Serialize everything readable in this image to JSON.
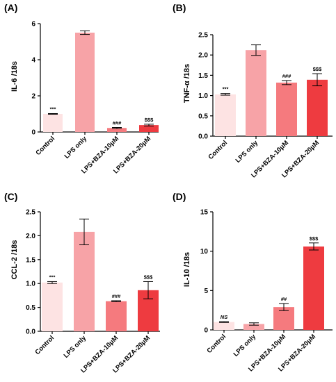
{
  "chart_data": [
    {
      "type": "bar",
      "panel_label": "(A)",
      "ylabel": "IL-6 /18s",
      "categories": [
        "Control",
        "LPS only",
        "LPS+BZA-10μM",
        "LPS+BZA-20μM"
      ],
      "values": [
        1.0,
        5.5,
        0.22,
        0.38
      ],
      "errors": [
        0.02,
        0.1,
        0.03,
        0.05
      ],
      "significance": [
        "***",
        "",
        "###",
        "$$$"
      ],
      "ylim": [
        0,
        6
      ],
      "yticks": [
        0,
        2,
        4,
        6
      ],
      "colors": [
        "#fde3e3",
        "#f7a3a7",
        "#f57a7e",
        "#ee3b40"
      ],
      "grid": false
    },
    {
      "type": "bar",
      "panel_label": "(B)",
      "ylabel": "TNF-α /18s",
      "categories": [
        "Control",
        "LPS only",
        "LPS+BZA-10μM",
        "LPS+BZA-20μM"
      ],
      "values": [
        1.03,
        2.12,
        1.32,
        1.39
      ],
      "errors": [
        0.02,
        0.13,
        0.05,
        0.15
      ],
      "significance": [
        "***",
        "",
        "###",
        "$$$"
      ],
      "ylim": [
        0,
        2.5
      ],
      "yticks": [
        "0.0",
        "0.5",
        "1.0",
        "1.5",
        "2.0",
        "2.5"
      ],
      "colors": [
        "#fde3e3",
        "#f7a3a7",
        "#f57a7e",
        "#ee3b40"
      ],
      "grid": false
    },
    {
      "type": "bar",
      "panel_label": "(C)",
      "ylabel": "CCL-2 /18s",
      "categories": [
        "Control",
        "LPS only",
        "LPS+BZA-10μM",
        "LPS+BZA-20μM"
      ],
      "values": [
        1.02,
        2.08,
        0.63,
        0.86
      ],
      "errors": [
        0.02,
        0.27,
        0.01,
        0.18
      ],
      "significance": [
        "***",
        "",
        "###",
        "$$$"
      ],
      "ylim": [
        0,
        2.5
      ],
      "yticks": [
        "0.0",
        "0.5",
        "1.0",
        "1.5",
        "2.0",
        "2.5"
      ],
      "colors": [
        "#fde3e3",
        "#f7a3a7",
        "#f57a7e",
        "#ee3b40"
      ],
      "grid": false
    },
    {
      "type": "bar",
      "panel_label": "(D)",
      "ylabel": "IL-10 /18s",
      "categories": [
        "Control",
        "LPS only",
        "LPS+BZA-10μM",
        "LPS+BZA-20μM"
      ],
      "values": [
        1.0,
        0.75,
        2.9,
        10.6
      ],
      "errors": [
        0.05,
        0.15,
        0.45,
        0.45
      ],
      "significance": [
        "NS",
        "",
        "##",
        "$$$"
      ],
      "ylim": [
        0,
        15
      ],
      "yticks": [
        0,
        5,
        10,
        15
      ],
      "colors": [
        "#fde3e3",
        "#f7a3a7",
        "#f57a7e",
        "#ee3b40"
      ],
      "grid": false
    }
  ]
}
